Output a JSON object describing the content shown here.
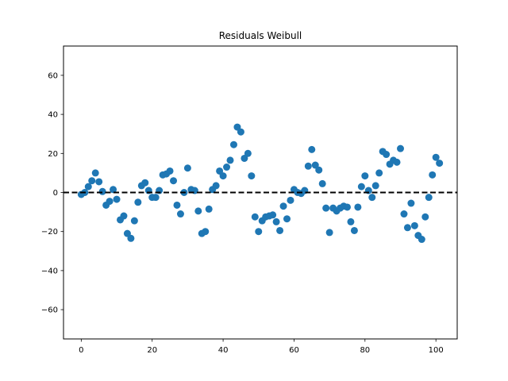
{
  "chart_data": {
    "type": "scatter",
    "title": "Residuals Weibull",
    "xlabel": "",
    "ylabel": "",
    "xlim": [
      -5,
      106
    ],
    "ylim": [
      -75,
      75
    ],
    "xticks": [
      0,
      20,
      40,
      60,
      80,
      100
    ],
    "yticks": [
      -60,
      -40,
      -20,
      0,
      20,
      40,
      60
    ],
    "grid": false,
    "reference_line": {
      "y": 0,
      "style": "dashed",
      "color": "#000000"
    },
    "marker_color": "#1f77b4",
    "x": [
      0,
      1,
      2,
      3,
      4,
      5,
      6,
      7,
      8,
      9,
      10,
      11,
      12,
      13,
      14,
      15,
      16,
      17,
      18,
      19,
      20,
      21,
      22,
      23,
      24,
      25,
      26,
      27,
      28,
      29,
      30,
      31,
      32,
      33,
      34,
      35,
      36,
      37,
      38,
      39,
      40,
      41,
      42,
      43,
      44,
      45,
      46,
      47,
      48,
      49,
      50,
      51,
      52,
      53,
      54,
      55,
      56,
      57,
      58,
      59,
      60,
      61,
      62,
      63,
      64,
      65,
      66,
      67,
      68,
      69,
      70,
      71,
      72,
      73,
      74,
      75,
      76,
      77,
      78,
      79,
      80,
      81,
      82,
      83,
      84,
      85,
      86,
      87,
      88,
      89,
      90,
      91,
      92,
      93,
      94,
      95,
      96,
      97,
      98,
      99,
      100,
      101
    ],
    "y": [
      -1,
      0,
      3,
      6,
      10,
      5.5,
      0.5,
      -6.5,
      -4.5,
      1.5,
      -3.5,
      -14,
      -12,
      -21,
      -23.5,
      -14.5,
      -5,
      3.5,
      5,
      1,
      -2.5,
      -2.5,
      1,
      9,
      9.5,
      11,
      6,
      -6.5,
      -11,
      0,
      12.5,
      1.5,
      1,
      -9.5,
      -21,
      -20,
      -8.5,
      1.5,
      3.5,
      11,
      8.5,
      13,
      16.5,
      24.5,
      33.5,
      31,
      17.5,
      20,
      8.5,
      -12.5,
      -20,
      -14.5,
      -12.5,
      -12,
      -11.5,
      -15,
      -19.5,
      -7,
      -13.5,
      -4,
      1.5,
      0,
      -0.5,
      1,
      13.5,
      22,
      14,
      11.5,
      4.5,
      -8,
      -20.5,
      -8,
      -9.5,
      -8,
      -7,
      -7.5,
      -15,
      -19.5,
      -7.5,
      3,
      8.5,
      1,
      -2.5,
      3.5,
      10,
      21,
      19.5,
      14.5,
      16.5,
      15.5,
      22.5,
      -11,
      -18,
      -5.5,
      -17,
      -22,
      -24,
      -12.5,
      -2.5,
      9,
      18,
      15
    ]
  }
}
